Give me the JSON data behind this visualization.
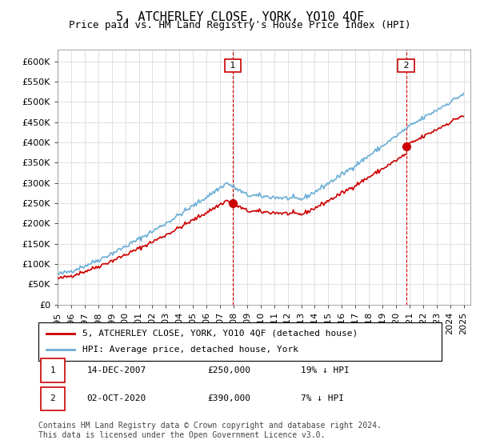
{
  "title": "5, ATCHERLEY CLOSE, YORK, YO10 4QF",
  "subtitle": "Price paid vs. HM Land Registry's House Price Index (HPI)",
  "property_label": "5, ATCHERLEY CLOSE, YORK, YO10 4QF (detached house)",
  "hpi_label": "HPI: Average price, detached house, York",
  "footer": "Contains HM Land Registry data © Crown copyright and database right 2024.\nThis data is licensed under the Open Government Licence v3.0.",
  "annotation1": {
    "num": "1",
    "date": "14-DEC-2007",
    "price": "£250,000",
    "pct": "19% ↓ HPI"
  },
  "annotation2": {
    "num": "2",
    "date": "02-OCT-2020",
    "price": "£390,000",
    "pct": "7% ↓ HPI"
  },
  "ylim": [
    0,
    630000
  ],
  "yticks": [
    0,
    50000,
    100000,
    150000,
    200000,
    250000,
    300000,
    350000,
    400000,
    450000,
    500000,
    550000,
    600000
  ],
  "ytick_labels": [
    "£0",
    "£50K",
    "£100K",
    "£150K",
    "£200K",
    "£250K",
    "£300K",
    "£350K",
    "£400K",
    "£450K",
    "£500K",
    "£550K",
    "£600K"
  ],
  "hpi_color": "#6baed6",
  "property_color": "#cc0000",
  "annotation_color": "#cc0000",
  "vline_color": "#cc0000",
  "purchase1_year": 2007.95,
  "purchase1_price": 250000,
  "purchase2_year": 2020.75,
  "purchase2_price": 390000,
  "title_fontsize": 11,
  "subtitle_fontsize": 9,
  "axis_fontsize": 8,
  "legend_fontsize": 8,
  "footer_fontsize": 7
}
